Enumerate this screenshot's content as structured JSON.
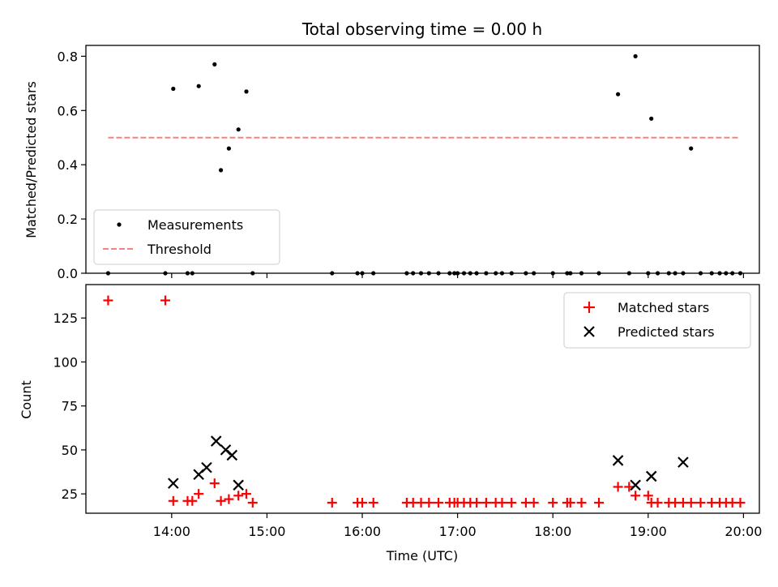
{
  "chart_data": [
    {
      "type": "scatter",
      "panel": "top",
      "title": "Total observing time = 0.00 h",
      "xlabel": "",
      "ylabel": "Matched/Predicted stars",
      "ylim": [
        0,
        0.84
      ],
      "xlim": [
        "13:06",
        "20:10"
      ],
      "yticks": [
        "0.0",
        "0.2",
        "0.4",
        "0.6",
        "0.8"
      ],
      "legend_position": "lower-left",
      "series": [
        {
          "name": "Measurements",
          "color": "#000000",
          "x": [
            "13:20",
            "13:56",
            "14:01",
            "14:10",
            "14:13",
            "14:17",
            "14:27",
            "14:31",
            "14:36",
            "14:42",
            "14:47",
            "14:51",
            "15:41",
            "15:57",
            "16:00",
            "16:07",
            "16:28",
            "16:32",
            "16:37",
            "16:42",
            "16:48",
            "16:55",
            "16:58",
            "17:00",
            "17:04",
            "17:08",
            "17:12",
            "17:18",
            "17:24",
            "17:28",
            "17:34",
            "17:43",
            "17:48",
            "18:00",
            "18:09",
            "18:11",
            "18:18",
            "18:29",
            "18:41",
            "18:48",
            "18:52",
            "19:00",
            "19:02",
            "19:06",
            "19:13",
            "19:17",
            "19:22",
            "19:27",
            "19:33",
            "19:40",
            "19:45",
            "19:49",
            "19:53",
            "19:58"
          ],
          "y": [
            0,
            0,
            0.68,
            0,
            0,
            0.69,
            0.77,
            0.38,
            0.46,
            0.53,
            0.67,
            0,
            0,
            0,
            0,
            0,
            0,
            0,
            0,
            0,
            0,
            0,
            0,
            0,
            0,
            0,
            0,
            0,
            0,
            0,
            0,
            0,
            0,
            0,
            0,
            0,
            0,
            0,
            0.66,
            0,
            0.8,
            0,
            0.57,
            0,
            0,
            0,
            0,
            0.46,
            0,
            0,
            0,
            0,
            0,
            0
          ]
        },
        {
          "name": "Threshold",
          "color": "#ff7f7f",
          "x": [
            "13:20",
            "19:58"
          ],
          "y": [
            0.5,
            0.5
          ]
        }
      ]
    },
    {
      "type": "scatter",
      "panel": "bottom",
      "xlabel": "Time (UTC)",
      "ylabel": "Count",
      "ylim": [
        14,
        144
      ],
      "xlim": [
        "13:06",
        "20:10"
      ],
      "xticks": [
        "14:00",
        "15:00",
        "16:00",
        "17:00",
        "18:00",
        "19:00",
        "20:00"
      ],
      "yticks": [
        "25",
        "50",
        "75",
        "100",
        "125"
      ],
      "legend_position": "upper-right",
      "series": [
        {
          "name": "Matched stars",
          "color": "#ff0000",
          "x": [
            "13:20",
            "13:56",
            "14:01",
            "14:10",
            "14:13",
            "14:17",
            "14:27",
            "14:31",
            "14:36",
            "14:42",
            "14:47",
            "14:51",
            "15:41",
            "15:57",
            "16:00",
            "16:07",
            "16:28",
            "16:32",
            "16:37",
            "16:42",
            "16:48",
            "16:55",
            "16:58",
            "17:00",
            "17:04",
            "17:08",
            "17:12",
            "17:18",
            "17:24",
            "17:28",
            "17:34",
            "17:43",
            "17:48",
            "18:00",
            "18:09",
            "18:11",
            "18:18",
            "18:29",
            "18:41",
            "18:48",
            "18:52",
            "19:00",
            "19:02",
            "19:06",
            "19:13",
            "19:17",
            "19:22",
            "19:27",
            "19:33",
            "19:40",
            "19:45",
            "19:49",
            "19:53",
            "19:58"
          ],
          "y": [
            135,
            135,
            21,
            21,
            21,
            25,
            31,
            21,
            22,
            24,
            25,
            20,
            20,
            20,
            20,
            20,
            20,
            20,
            20,
            20,
            20,
            20,
            20,
            20,
            20,
            20,
            20,
            20,
            20,
            20,
            20,
            20,
            20,
            20,
            20,
            20,
            20,
            20,
            29,
            29,
            24,
            24,
            20,
            20,
            20,
            20,
            20,
            20,
            20,
            20,
            20,
            20,
            20,
            20
          ]
        },
        {
          "name": "Predicted stars",
          "color": "#000000",
          "x": [
            "14:01",
            "14:17",
            "14:22",
            "14:28",
            "14:34",
            "14:38",
            "14:42",
            "18:41",
            "18:52",
            "19:02",
            "19:22"
          ],
          "y": [
            31,
            36,
            40,
            55,
            50,
            47,
            30,
            44,
            30,
            35,
            43
          ]
        }
      ]
    }
  ]
}
